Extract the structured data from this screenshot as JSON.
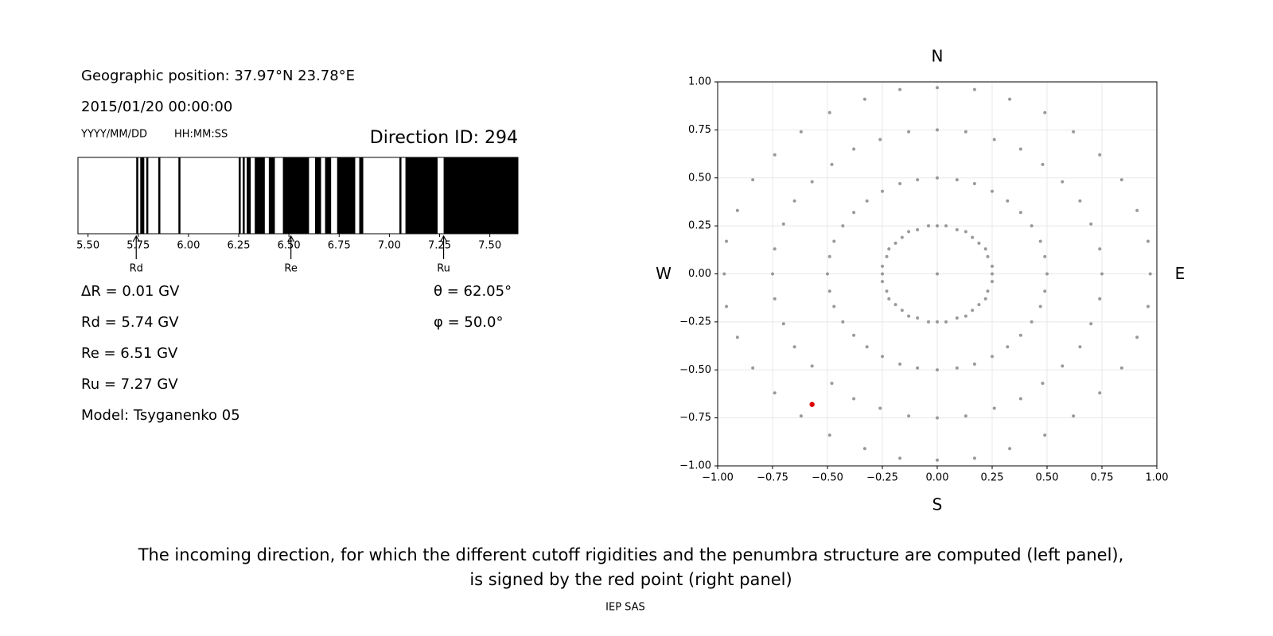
{
  "panel": {
    "geo": "Geographic position: 37.97°N 23.78°E",
    "datetime": "2015/01/20 00:00:00",
    "date_format": "YYYY/MM/DD",
    "time_format": "HH:MM:SS",
    "direction": "Direction ID: 294",
    "results": [
      "ΔR = 0.01 GV",
      "Rd = 5.74 GV",
      "Re = 6.51 GV",
      "Ru = 7.27 GV",
      "Model: Tsyganenko 05"
    ],
    "angles": [
      "θ = 62.05°",
      "φ = 50.0°"
    ]
  },
  "caption": [
    "The incoming direction, for which the different cutoff rigidities and the penumbra structure are computed (left panel),",
    "is signed by the red point (right panel)"
  ],
  "footer": "IEP SAS",
  "chart_data": [
    {
      "type": "penumbra",
      "color": "#000000",
      "xlim": [
        5.45,
        7.64
      ],
      "xticks": [
        {
          "value": 5.5,
          "label": "5.50"
        },
        {
          "value": 5.75,
          "label": "5.75"
        },
        {
          "value": 6,
          "label": "6.00"
        },
        {
          "value": 6.25,
          "label": "6.25"
        },
        {
          "value": 6.5,
          "label": "6.50"
        },
        {
          "value": 6.75,
          "label": "6.75"
        },
        {
          "value": 7,
          "label": "7.00"
        },
        {
          "value": 7.25,
          "label": "7.25"
        },
        {
          "value": 7.5,
          "label": "7.50"
        }
      ],
      "intervals": [
        [
          5.74,
          5.75
        ],
        [
          5.76,
          5.78
        ],
        [
          5.79,
          5.8
        ],
        [
          5.85,
          5.86
        ],
        [
          5.95,
          5.96
        ],
        [
          6.25,
          6.26
        ],
        [
          6.27,
          6.28
        ],
        [
          6.29,
          6.31
        ],
        [
          6.33,
          6.38
        ],
        [
          6.4,
          6.43
        ],
        [
          6.47,
          6.6
        ],
        [
          6.63,
          6.66
        ],
        [
          6.68,
          6.71
        ],
        [
          6.74,
          6.83
        ],
        [
          6.85,
          6.87
        ],
        [
          7.05,
          7.06
        ],
        [
          7.08,
          7.24
        ],
        [
          7.27,
          7.64
        ]
      ],
      "markers": [
        {
          "label": "Rd",
          "value": 5.74
        },
        {
          "label": "Re",
          "value": 6.51
        },
        {
          "label": "Ru",
          "value": 7.27
        }
      ]
    },
    {
      "type": "scatter",
      "grid": true,
      "xlim": [
        -1,
        1
      ],
      "ylim": [
        -1,
        1
      ],
      "xticks": [
        {
          "value": -1,
          "label": "−1.00"
        },
        {
          "value": -0.75,
          "label": "−0.75"
        },
        {
          "value": -0.5,
          "label": "−0.50"
        },
        {
          "value": -0.25,
          "label": "−0.25"
        },
        {
          "value": 0,
          "label": "0.00"
        },
        {
          "value": 0.25,
          "label": "0.25"
        },
        {
          "value": 0.5,
          "label": "0.50"
        },
        {
          "value": 0.75,
          "label": "0.75"
        },
        {
          "value": 1,
          "label": "1.00"
        }
      ],
      "yticks": [
        {
          "value": -1,
          "label": "−1.00"
        },
        {
          "value": -0.75,
          "label": "−0.75"
        },
        {
          "value": -0.5,
          "label": "−0.50"
        },
        {
          "value": -0.25,
          "label": "−0.25"
        },
        {
          "value": 0,
          "label": "0.00"
        },
        {
          "value": 0.25,
          "label": "0.25"
        },
        {
          "value": 0.5,
          "label": "0.50"
        },
        {
          "value": 0.75,
          "label": "0.75"
        },
        {
          "value": 1,
          "label": "1.00"
        }
      ],
      "direction_labels": {
        "north": "N",
        "south": "S",
        "west": "W",
        "east": "E"
      },
      "series": [
        {
          "color": "#999999",
          "x": [
            0,
            0.25,
            0.25,
            0.23,
            0.22,
            0.19,
            0.16,
            0.13,
            0.09,
            0.04,
            0,
            -0.04,
            -0.09,
            -0.13,
            -0.16,
            -0.19,
            -0.22,
            -0.23,
            -0.25,
            -0.25,
            -0.25,
            -0.23,
            -0.22,
            -0.19,
            -0.16,
            -0.13,
            -0.09,
            -0.04,
            0,
            0.04,
            0.09,
            0.13,
            0.16,
            0.19,
            0.22,
            0.23,
            0.25,
            0.5,
            0.49,
            0.47,
            0.43,
            0.38,
            0.32,
            0.25,
            0.17,
            0.09,
            0,
            -0.09,
            -0.17,
            -0.25,
            -0.32,
            -0.38,
            -0.43,
            -0.47,
            -0.49,
            -0.5,
            -0.49,
            -0.47,
            -0.43,
            -0.38,
            -0.32,
            -0.25,
            -0.17,
            -0.09,
            0,
            0.09,
            0.17,
            0.25,
            0.32,
            0.38,
            0.43,
            0.47,
            0.49,
            0.75,
            0.74,
            0.7,
            0.65,
            0.57,
            0.48,
            0.38,
            0.26,
            0.13,
            0,
            -0.13,
            -0.26,
            -0.38,
            -0.48,
            -0.57,
            -0.65,
            -0.7,
            -0.74,
            -0.75,
            -0.74,
            -0.7,
            -0.65,
            -0.57,
            -0.48,
            -0.38,
            -0.26,
            -0.13,
            0,
            0.13,
            0.26,
            0.38,
            0.48,
            0.57,
            0.65,
            0.7,
            0.74,
            0.97,
            0.96,
            0.91,
            0.84,
            0.74,
            0.62,
            0.49,
            0.33,
            0.17,
            0,
            -0.17,
            -0.33,
            -0.49,
            -0.62,
            -0.74,
            -0.84,
            -0.91,
            -0.96,
            -0.97,
            -0.96,
            -0.91,
            -0.84,
            -0.74,
            -0.62,
            -0.49,
            -0.33,
            -0.17,
            0,
            0.17,
            0.33,
            0.49,
            0.62,
            0.74,
            0.84,
            0.91,
            0.96
          ],
          "values": [
            0,
            0,
            0.04,
            0.09,
            0.13,
            0.16,
            0.19,
            0.22,
            0.23,
            0.25,
            0.25,
            0.25,
            0.23,
            0.22,
            0.19,
            0.16,
            0.13,
            0.09,
            0.04,
            0,
            -0.04,
            -0.09,
            -0.13,
            -0.16,
            -0.19,
            -0.22,
            -0.23,
            -0.25,
            -0.25,
            -0.25,
            -0.23,
            -0.22,
            -0.19,
            -0.16,
            -0.13,
            -0.09,
            -0.04,
            0,
            0.09,
            0.17,
            0.25,
            0.32,
            0.38,
            0.43,
            0.47,
            0.49,
            0.5,
            0.49,
            0.47,
            0.43,
            0.38,
            0.32,
            0.25,
            0.17,
            0.09,
            0,
            -0.09,
            -0.17,
            -0.25,
            -0.32,
            -0.38,
            -0.43,
            -0.47,
            -0.49,
            -0.5,
            -0.49,
            -0.47,
            -0.43,
            -0.38,
            -0.32,
            -0.25,
            -0.17,
            -0.09,
            0,
            0.13,
            0.26,
            0.38,
            0.48,
            0.57,
            0.65,
            0.7,
            0.74,
            0.75,
            0.74,
            0.7,
            0.65,
            0.57,
            0.48,
            0.38,
            0.26,
            0.13,
            0,
            -0.13,
            -0.26,
            -0.38,
            -0.48,
            -0.57,
            -0.65,
            -0.7,
            -0.74,
            -0.75,
            -0.74,
            -0.7,
            -0.65,
            -0.57,
            -0.48,
            -0.38,
            -0.26,
            -0.13,
            0,
            0.17,
            0.33,
            0.49,
            0.62,
            0.74,
            0.84,
            0.91,
            0.96,
            0.97,
            0.96,
            0.91,
            0.84,
            0.74,
            0.62,
            0.49,
            0.33,
            0.17,
            0,
            -0.17,
            -0.33,
            -0.49,
            -0.62,
            -0.74,
            -0.84,
            -0.91,
            -0.96,
            -0.97,
            -0.96,
            -0.91,
            -0.84,
            -0.74,
            -0.62,
            -0.49,
            -0.33,
            -0.17
          ]
        },
        {
          "color": "#e00000",
          "x": [
            -0.57
          ],
          "values": [
            -0.68
          ]
        }
      ]
    }
  ]
}
